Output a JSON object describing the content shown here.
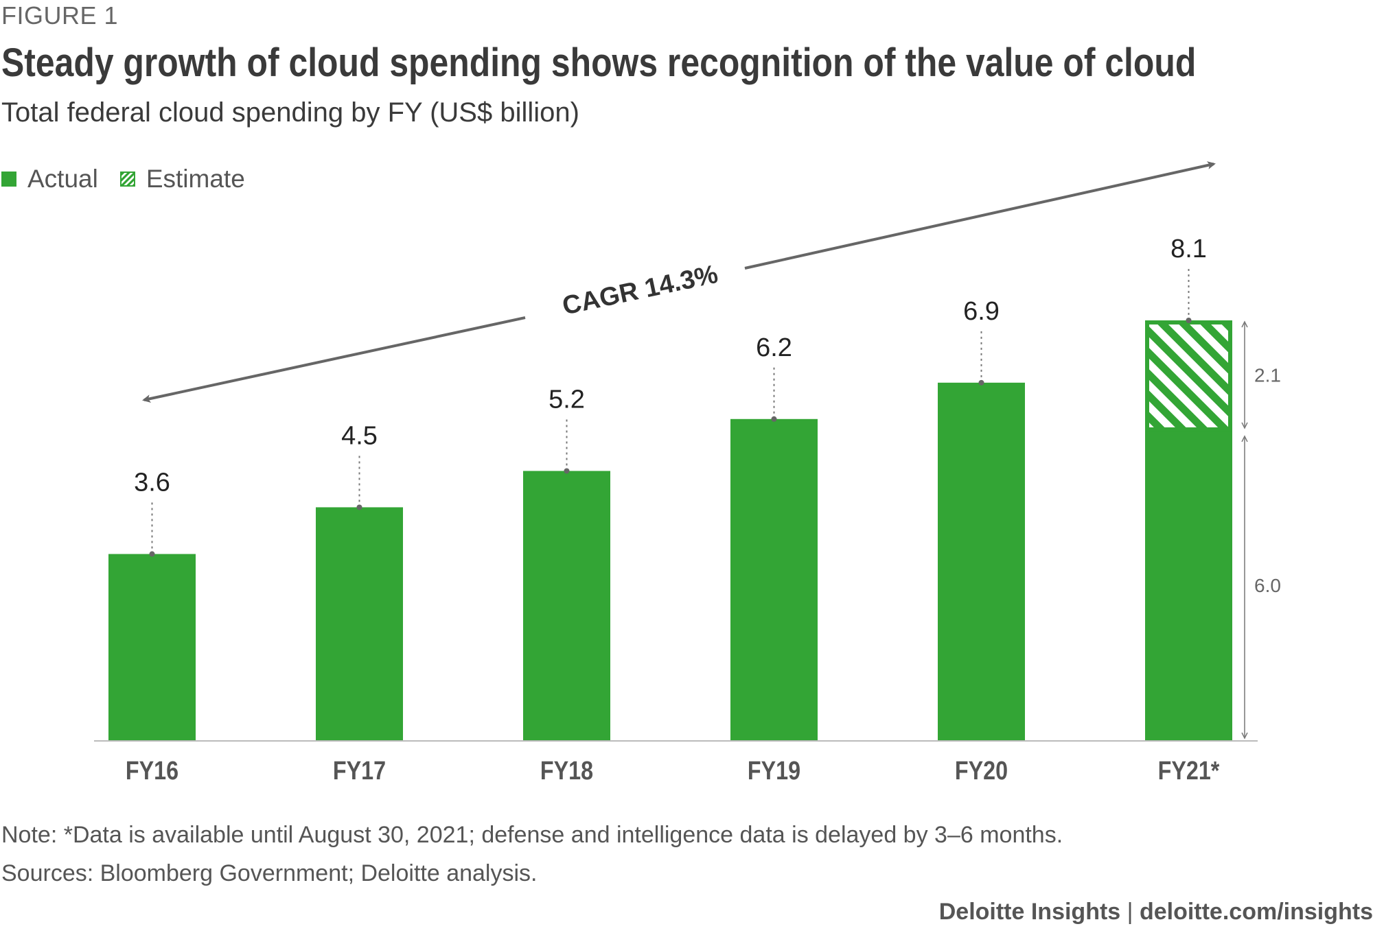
{
  "figure_label": "FIGURE 1",
  "footer": {
    "note": "Note: *Data is available until August 30, 2021; defense and intelligence data is delayed by 3–6 months.",
    "sources": "Sources: Bloomberg Government; Deloitte analysis.",
    "brand": "Deloitte Insights",
    "separator": "|",
    "url": "deloitte.com/insights"
  },
  "colors": {
    "bar": "#33a535",
    "text_dark": "#3a3a3a",
    "annotation": "#666666"
  },
  "chart_data": {
    "type": "bar",
    "title": "Steady growth of cloud spending shows recognition of the value of cloud",
    "subtitle": "Total federal cloud spending by FY (US$ billion)",
    "categories": [
      "FY16",
      "FY17",
      "FY18",
      "FY19",
      "FY20",
      "FY21*"
    ],
    "series": [
      {
        "name": "Actual",
        "values": [
          3.6,
          4.5,
          5.2,
          6.2,
          6.9,
          6.0
        ]
      },
      {
        "name": "Estimate",
        "values": [
          0,
          0,
          0,
          0,
          0,
          2.1
        ]
      }
    ],
    "total_labels": [
      "3.6",
      "4.5",
      "5.2",
      "6.2",
      "6.9",
      "8.1"
    ],
    "segment_labels": {
      "actual": "6.0",
      "estimate": "2.1"
    },
    "annotation": "CAGR 14.3%",
    "ylim": [
      0,
      8.1
    ],
    "legend": {
      "position": "top-left",
      "items": [
        "Actual",
        "Estimate"
      ]
    },
    "grid": false
  }
}
